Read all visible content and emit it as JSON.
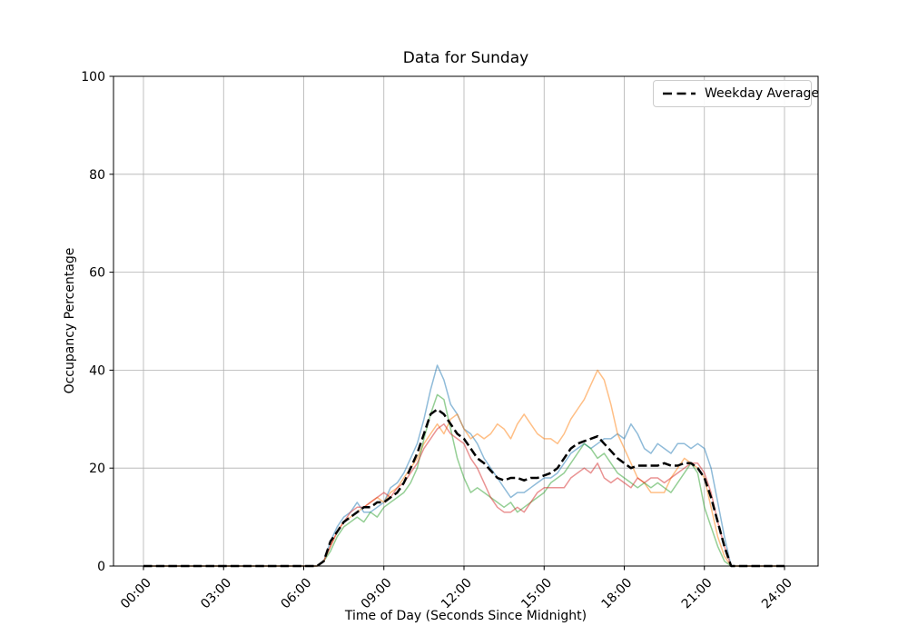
{
  "chart_data": {
    "type": "line",
    "title": "Data for Sunday",
    "xlabel": "Time of Day (Seconds Since Midnight)",
    "ylabel": "Occupancy Percentage",
    "xlim_hours": [
      0,
      24
    ],
    "ylim": [
      0,
      100
    ],
    "grid": true,
    "grid_color": "#b0b0b0",
    "spine_color": "#000000",
    "background_color": "#ffffff",
    "x_ticks_hours": [
      0,
      3,
      6,
      9,
      12,
      15,
      18,
      21,
      24
    ],
    "x_tick_labels": [
      "00:00",
      "03:00",
      "06:00",
      "09:00",
      "12:00",
      "15:00",
      "18:00",
      "21:00",
      "24:00"
    ],
    "y_ticks": [
      0,
      20,
      40,
      60,
      80,
      100
    ],
    "y_tick_labels": [
      "0",
      "20",
      "40",
      "60",
      "80",
      "100"
    ],
    "legend": {
      "position": "upper right",
      "entries": [
        {
          "label": "Weekday Average",
          "color": "#000000",
          "style": "dashed",
          "line_width": 2.5
        }
      ]
    },
    "x_hours": [
      0,
      6.5,
      6.75,
      7,
      7.25,
      7.5,
      7.75,
      8,
      8.25,
      8.5,
      8.75,
      9,
      9.25,
      9.5,
      9.75,
      10,
      10.25,
      10.5,
      10.75,
      11,
      11.25,
      11.5,
      11.75,
      12,
      12.25,
      12.5,
      12.75,
      13,
      13.25,
      13.5,
      13.75,
      14,
      14.25,
      14.5,
      14.75,
      15,
      15.25,
      15.5,
      15.75,
      16,
      16.25,
      16.5,
      16.75,
      17,
      17.25,
      17.5,
      17.75,
      18,
      18.25,
      18.5,
      18.75,
      19,
      19.25,
      19.5,
      19.75,
      20,
      20.25,
      20.5,
      20.75,
      21,
      21.25,
      21.5,
      21.75,
      22,
      22.25,
      24
    ],
    "series": [
      {
        "name": "day-series-blue",
        "color": "#1f77b4",
        "alpha": 0.5,
        "line_width": 1.5,
        "style": "solid",
        "values": [
          0,
          0,
          1,
          5,
          8,
          10,
          11,
          13,
          11,
          11,
          12,
          13,
          16,
          17,
          19,
          22,
          25,
          30,
          36,
          41,
          38,
          33,
          31,
          28,
          27,
          25,
          22,
          20,
          18,
          16,
          14,
          15,
          15,
          16,
          17,
          18,
          18,
          19,
          21,
          23,
          24,
          25,
          24,
          25,
          26,
          26,
          27,
          26,
          29,
          27,
          24,
          23,
          25,
          24,
          23,
          25,
          25,
          24,
          25,
          24,
          20,
          13,
          6,
          0,
          0,
          0
        ]
      },
      {
        "name": "day-series-orange",
        "color": "#ff7f0e",
        "alpha": 0.5,
        "line_width": 1.5,
        "style": "solid",
        "values": [
          0,
          0,
          1,
          4,
          7,
          9,
          10,
          11,
          12,
          13,
          14,
          13,
          15,
          16,
          18,
          20,
          22,
          25,
          27,
          29,
          27,
          30,
          31,
          28,
          26,
          27,
          26,
          27,
          29,
          28,
          26,
          29,
          31,
          29,
          27,
          26,
          26,
          25,
          27,
          30,
          32,
          34,
          37,
          40,
          38,
          33,
          27,
          24,
          21,
          18,
          17,
          15,
          15,
          15,
          18,
          20,
          22,
          21,
          20,
          18,
          12,
          6,
          2,
          0,
          0,
          0
        ]
      },
      {
        "name": "day-series-green",
        "color": "#2ca02c",
        "alpha": 0.5,
        "line_width": 1.5,
        "style": "solid",
        "values": [
          0,
          0,
          1,
          3,
          6,
          8,
          9,
          10,
          9,
          11,
          10,
          12,
          13,
          14,
          15,
          17,
          20,
          26,
          31,
          35,
          34,
          28,
          22,
          18,
          15,
          16,
          15,
          14,
          13,
          12,
          13,
          11,
          12,
          13,
          14,
          15,
          17,
          18,
          19,
          21,
          23,
          25,
          24,
          22,
          23,
          21,
          19,
          18,
          17,
          16,
          17,
          16,
          17,
          16,
          15,
          17,
          19,
          21,
          19,
          12,
          8,
          4,
          1,
          0,
          0,
          0
        ]
      },
      {
        "name": "day-series-red",
        "color": "#d62728",
        "alpha": 0.5,
        "line_width": 1.5,
        "style": "solid",
        "values": [
          0,
          0,
          1,
          4,
          7,
          9,
          11,
          12,
          12,
          13,
          14,
          15,
          14,
          16,
          17,
          19,
          21,
          24,
          26,
          28,
          29,
          27,
          26,
          25,
          22,
          20,
          17,
          14,
          12,
          11,
          11,
          12,
          11,
          13,
          15,
          16,
          16,
          16,
          16,
          18,
          19,
          20,
          19,
          21,
          18,
          17,
          18,
          17,
          16,
          18,
          17,
          18,
          18,
          17,
          18,
          19,
          20,
          21,
          21,
          19,
          15,
          9,
          4,
          0,
          0,
          0
        ]
      },
      {
        "name": "weekday-average",
        "color": "#000000",
        "alpha": 1,
        "line_width": 2.5,
        "style": "dashed",
        "values": [
          0,
          0,
          1,
          5,
          7,
          9,
          10,
          11,
          12,
          12,
          13,
          13,
          14,
          15,
          17,
          20,
          23,
          27,
          31,
          32,
          31,
          29,
          27,
          26,
          24,
          22,
          21,
          19.5,
          18,
          17.5,
          18,
          18,
          17.5,
          18,
          18,
          18.5,
          19,
          20,
          22,
          24,
          25,
          25.5,
          26,
          26.5,
          25,
          23.5,
          22,
          21,
          20,
          20.5,
          20.5,
          20.5,
          20.5,
          21,
          20.5,
          20.5,
          21,
          21,
          20,
          18,
          14,
          9,
          4,
          0,
          0,
          0
        ]
      }
    ]
  }
}
